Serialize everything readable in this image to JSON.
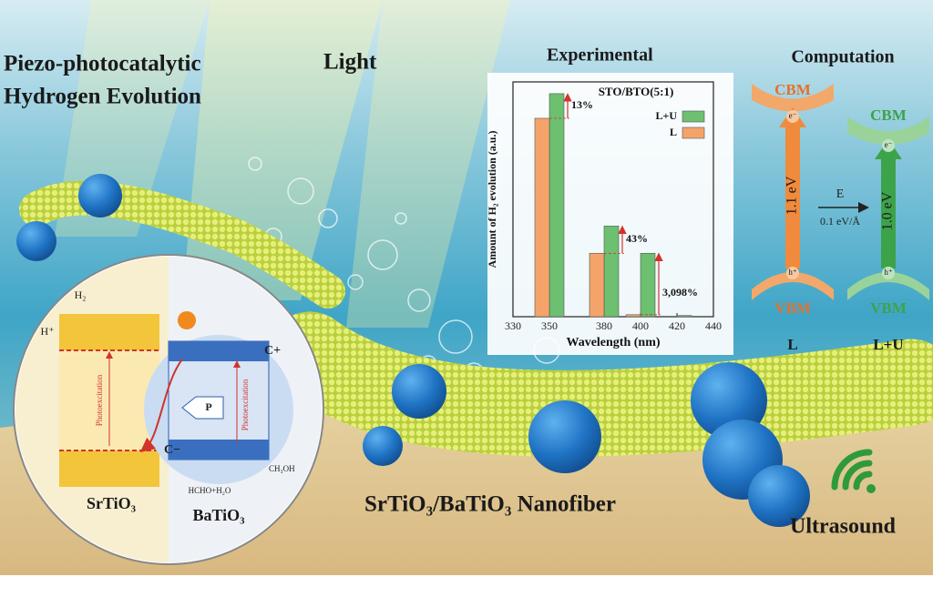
{
  "title": {
    "line1": "Piezo-photocatalytic",
    "line2": "Hydrogen Evolution"
  },
  "light_label": "Light",
  "experimental_label": "Experimental",
  "chart_data": {
    "type": "bar",
    "title": "STO/BTO(5:1)",
    "x_label": "Wavelength (nm)",
    "y_label": "Amount of H₂ evolution (a.u.)",
    "x": [
      350,
      380,
      400,
      420
    ],
    "series": [
      {
        "name": "L+U",
        "color": "#6cc070",
        "values": [
          0.95,
          0.386,
          0.27,
          0.005
        ]
      },
      {
        "name": "L",
        "color": "#f4a46a",
        "values": [
          0.845,
          0.27,
          0.0085,
          0
        ]
      }
    ],
    "annotations": [
      "13%",
      "43%",
      "3,098%"
    ],
    "xlim": [
      330,
      440
    ],
    "xticks": [
      330,
      350,
      380,
      400,
      420,
      440
    ],
    "ylim": [
      0,
      1
    ]
  },
  "computation": {
    "title": "Computation",
    "left": {
      "cbm": "CBM",
      "electron": "e⁻",
      "gap": "1.1 eV",
      "hole": "h⁺",
      "vbm": "VBM",
      "label": "L"
    },
    "right": {
      "cbm": "CBM",
      "electron": "e⁻",
      "gap": "1.0 eV",
      "hole": "h⁺",
      "vbm": "VBM",
      "label": "L+U"
    },
    "field": "E",
    "field_value": "0.1 eV/Å"
  },
  "inset": {
    "h2": "H₂",
    "h_plus": "H⁺",
    "photoexcitation_left": "Photoexcitation",
    "photoexcitation_right": "Photoexcitation",
    "polarization": "P",
    "c_plus": "C+",
    "c_minus": "C−",
    "methanol": "CH₃OH",
    "products": "HCHO+H₂O",
    "left_material": "SrTiO₃",
    "right_material": "BaTiO₃"
  },
  "nanofiber_label": "SrTiO₃/BaTiO₃ Nanofiber",
  "ultrasound_label": "Ultrasound"
}
